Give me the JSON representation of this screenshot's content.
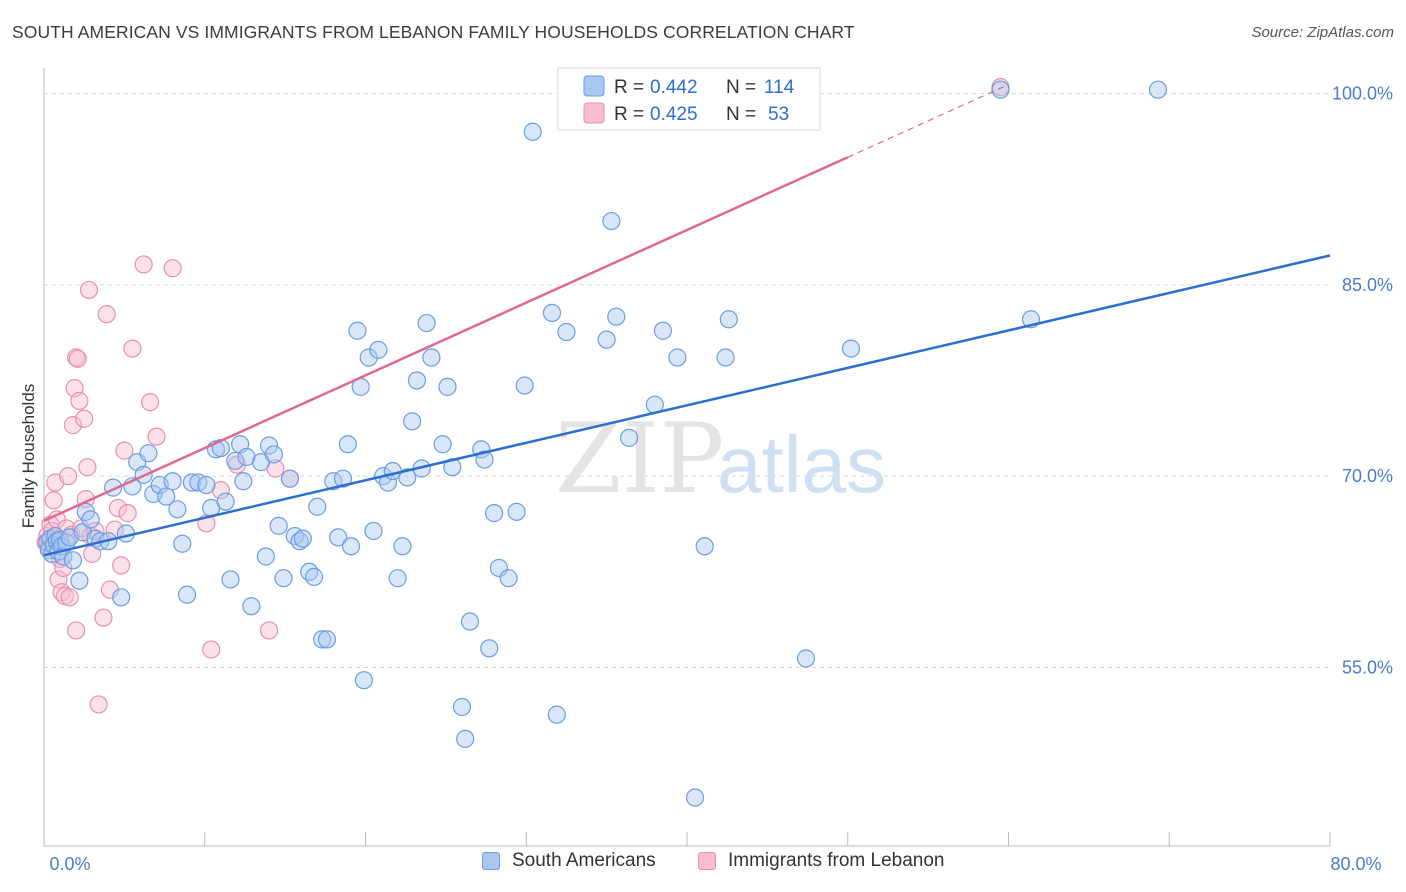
{
  "header": {
    "title": "SOUTH AMERICAN VS IMMIGRANTS FROM LEBANON FAMILY HOUSEHOLDS CORRELATION CHART",
    "source": "Source: ZipAtlas.com"
  },
  "watermark": {
    "zip": "ZIP",
    "atlas": "atlas"
  },
  "colors": {
    "blue_fill": "#a9c8ef",
    "blue_stroke": "#6a9ee0",
    "blue_line": "#2b6fcf",
    "pink_fill": "#f6bfd0",
    "pink_stroke": "#ea8fae",
    "pink_line": "#e06890",
    "axis_label": "#4a7cc9",
    "grid": "#d9d9d9"
  },
  "chart_data": {
    "type": "scatter",
    "title": "SOUTH AMERICAN VS IMMIGRANTS FROM LEBANON FAMILY HOUSEHOLDS CORRELATION CHART",
    "xlabel": "",
    "ylabel": "Family Households",
    "xlim": [
      0,
      80
    ],
    "ylim": [
      41,
      102
    ],
    "x_tick_labels": {
      "min": "0.0%",
      "max": "80.0%"
    },
    "y_ticks": [
      55,
      70,
      85,
      100
    ],
    "y_tick_labels": [
      "55.0%",
      "70.0%",
      "85.0%",
      "100.0%"
    ],
    "legend_stats": [
      {
        "r_label": "R = ",
        "r_value": "0.442",
        "n_label": "N = ",
        "n_value": "114"
      },
      {
        "r_label": "R = ",
        "r_value": "0.425",
        "n_label": "N = ",
        "n_value": "53"
      }
    ],
    "series": [
      {
        "name": "South Americans",
        "color": "#a9c8ef",
        "trend": {
          "x0": 0,
          "y0": 63.8,
          "x1": 80,
          "y1": 87.3
        },
        "points": [
          [
            0.2,
            64.8
          ],
          [
            0.3,
            64.2
          ],
          [
            0.4,
            65.1
          ],
          [
            0.5,
            63.9
          ],
          [
            0.6,
            64.6
          ],
          [
            0.7,
            65.3
          ],
          [
            0.8,
            64.9
          ],
          [
            0.9,
            64.1
          ],
          [
            1.0,
            65.0
          ],
          [
            1.1,
            64.5
          ],
          [
            1.2,
            63.7
          ],
          [
            1.4,
            64.8
          ],
          [
            1.6,
            65.2
          ],
          [
            1.8,
            63.4
          ],
          [
            2.2,
            61.8
          ],
          [
            2.4,
            65.6
          ],
          [
            2.6,
            67.2
          ],
          [
            2.9,
            66.6
          ],
          [
            3.2,
            65.1
          ],
          [
            3.5,
            64.9
          ],
          [
            4.0,
            64.9
          ],
          [
            4.3,
            69.1
          ],
          [
            4.8,
            60.5
          ],
          [
            5.1,
            65.5
          ],
          [
            5.5,
            69.2
          ],
          [
            5.8,
            71.1
          ],
          [
            6.2,
            70.1
          ],
          [
            6.5,
            71.8
          ],
          [
            6.8,
            68.6
          ],
          [
            7.2,
            69.3
          ],
          [
            7.6,
            68.4
          ],
          [
            8.0,
            69.6
          ],
          [
            8.3,
            67.4
          ],
          [
            8.6,
            64.7
          ],
          [
            8.9,
            60.7
          ],
          [
            9.2,
            69.5
          ],
          [
            9.6,
            69.5
          ],
          [
            10.1,
            69.3
          ],
          [
            10.4,
            67.5
          ],
          [
            10.7,
            72.1
          ],
          [
            11.0,
            72.2
          ],
          [
            11.3,
            68.0
          ],
          [
            11.6,
            61.9
          ],
          [
            11.9,
            71.2
          ],
          [
            12.2,
            72.5
          ],
          [
            12.4,
            69.6
          ],
          [
            12.6,
            71.5
          ],
          [
            12.9,
            59.8
          ],
          [
            13.5,
            71.1
          ],
          [
            13.8,
            63.7
          ],
          [
            14.0,
            72.4
          ],
          [
            14.3,
            71.7
          ],
          [
            14.6,
            66.1
          ],
          [
            14.9,
            62.0
          ],
          [
            15.3,
            69.8
          ],
          [
            15.6,
            65.3
          ],
          [
            15.9,
            64.9
          ],
          [
            16.1,
            65.1
          ],
          [
            16.5,
            62.5
          ],
          [
            16.8,
            62.1
          ],
          [
            17.0,
            67.6
          ],
          [
            17.3,
            57.2
          ],
          [
            17.6,
            57.2
          ],
          [
            18.0,
            69.6
          ],
          [
            18.3,
            65.2
          ],
          [
            18.6,
            69.8
          ],
          [
            18.9,
            72.5
          ],
          [
            19.1,
            64.5
          ],
          [
            19.5,
            81.4
          ],
          [
            19.7,
            77.0
          ],
          [
            19.9,
            54.0
          ],
          [
            20.2,
            79.3
          ],
          [
            20.5,
            65.7
          ],
          [
            20.8,
            79.9
          ],
          [
            21.1,
            70.0
          ],
          [
            21.4,
            69.5
          ],
          [
            21.7,
            70.4
          ],
          [
            22.0,
            62.0
          ],
          [
            22.3,
            64.5
          ],
          [
            22.6,
            69.9
          ],
          [
            22.9,
            74.3
          ],
          [
            23.2,
            77.5
          ],
          [
            23.5,
            70.6
          ],
          [
            23.8,
            82.0
          ],
          [
            24.1,
            79.3
          ],
          [
            24.8,
            72.5
          ],
          [
            25.1,
            77.0
          ],
          [
            25.4,
            70.7
          ],
          [
            26.0,
            51.9
          ],
          [
            26.2,
            49.4
          ],
          [
            26.5,
            58.6
          ],
          [
            27.2,
            72.1
          ],
          [
            27.4,
            71.3
          ],
          [
            27.7,
            56.5
          ],
          [
            28.0,
            67.1
          ],
          [
            28.3,
            62.8
          ],
          [
            28.9,
            62.0
          ],
          [
            29.4,
            67.2
          ],
          [
            29.9,
            77.1
          ],
          [
            30.4,
            97.0
          ],
          [
            31.6,
            82.8
          ],
          [
            31.9,
            51.3
          ],
          [
            32.5,
            81.3
          ],
          [
            35.0,
            80.7
          ],
          [
            35.3,
            90.0
          ],
          [
            35.6,
            82.5
          ],
          [
            36.4,
            73.0
          ],
          [
            38.0,
            75.6
          ],
          [
            38.5,
            81.4
          ],
          [
            39.4,
            79.3
          ],
          [
            40.5,
            44.8
          ],
          [
            41.1,
            64.5
          ],
          [
            42.4,
            79.3
          ],
          [
            42.6,
            82.3
          ],
          [
            47.4,
            55.7
          ],
          [
            50.2,
            80.0
          ],
          [
            59.5,
            100.3
          ],
          [
            61.4,
            82.3
          ],
          [
            69.3,
            100.3
          ]
        ]
      },
      {
        "name": "Immigrants from Lebanon",
        "color": "#f6bfd0",
        "trend": {
          "x0": 0,
          "y0": 66.5,
          "x1": 50,
          "y1": 95.0
        },
        "trend_dashed_to": {
          "x": 60,
          "y": 100.7
        },
        "points": [
          [
            0.1,
            64.8
          ],
          [
            0.2,
            65.3
          ],
          [
            0.3,
            64.4
          ],
          [
            0.4,
            66.2
          ],
          [
            0.5,
            65.7
          ],
          [
            0.6,
            68.1
          ],
          [
            0.7,
            69.5
          ],
          [
            0.8,
            66.6
          ],
          [
            0.9,
            61.9
          ],
          [
            1.0,
            63.5
          ],
          [
            1.1,
            60.9
          ],
          [
            1.2,
            62.8
          ],
          [
            1.3,
            60.6
          ],
          [
            1.4,
            65.9
          ],
          [
            1.5,
            70.0
          ],
          [
            1.6,
            60.5
          ],
          [
            1.7,
            65.4
          ],
          [
            1.8,
            74.0
          ],
          [
            1.9,
            76.9
          ],
          [
            2.0,
            79.3
          ],
          [
            2.1,
            79.2
          ],
          [
            2.2,
            75.9
          ],
          [
            2.3,
            65.9
          ],
          [
            2.5,
            74.5
          ],
          [
            2.6,
            68.2
          ],
          [
            2.7,
            70.7
          ],
          [
            2.8,
            84.6
          ],
          [
            2.9,
            65.3
          ],
          [
            3.0,
            63.9
          ],
          [
            3.2,
            65.7
          ],
          [
            3.4,
            52.1
          ],
          [
            3.7,
            58.9
          ],
          [
            3.9,
            82.7
          ],
          [
            4.1,
            61.1
          ],
          [
            4.4,
            65.8
          ],
          [
            4.6,
            67.5
          ],
          [
            4.8,
            63.0
          ],
          [
            5.0,
            72.0
          ],
          [
            5.2,
            67.1
          ],
          [
            5.5,
            80.0
          ],
          [
            6.2,
            86.6
          ],
          [
            6.6,
            75.8
          ],
          [
            7.0,
            73.1
          ],
          [
            8.0,
            86.3
          ],
          [
            10.1,
            66.3
          ],
          [
            10.4,
            56.4
          ],
          [
            11.0,
            68.9
          ],
          [
            12.0,
            70.9
          ],
          [
            14.0,
            57.9
          ],
          [
            14.4,
            70.6
          ],
          [
            15.3,
            69.8
          ],
          [
            2.0,
            57.9
          ],
          [
            59.5,
            100.5
          ]
        ]
      }
    ]
  },
  "bottom_legend": [
    {
      "label": "South Americans"
    },
    {
      "label": "Immigrants from Lebanon"
    }
  ]
}
